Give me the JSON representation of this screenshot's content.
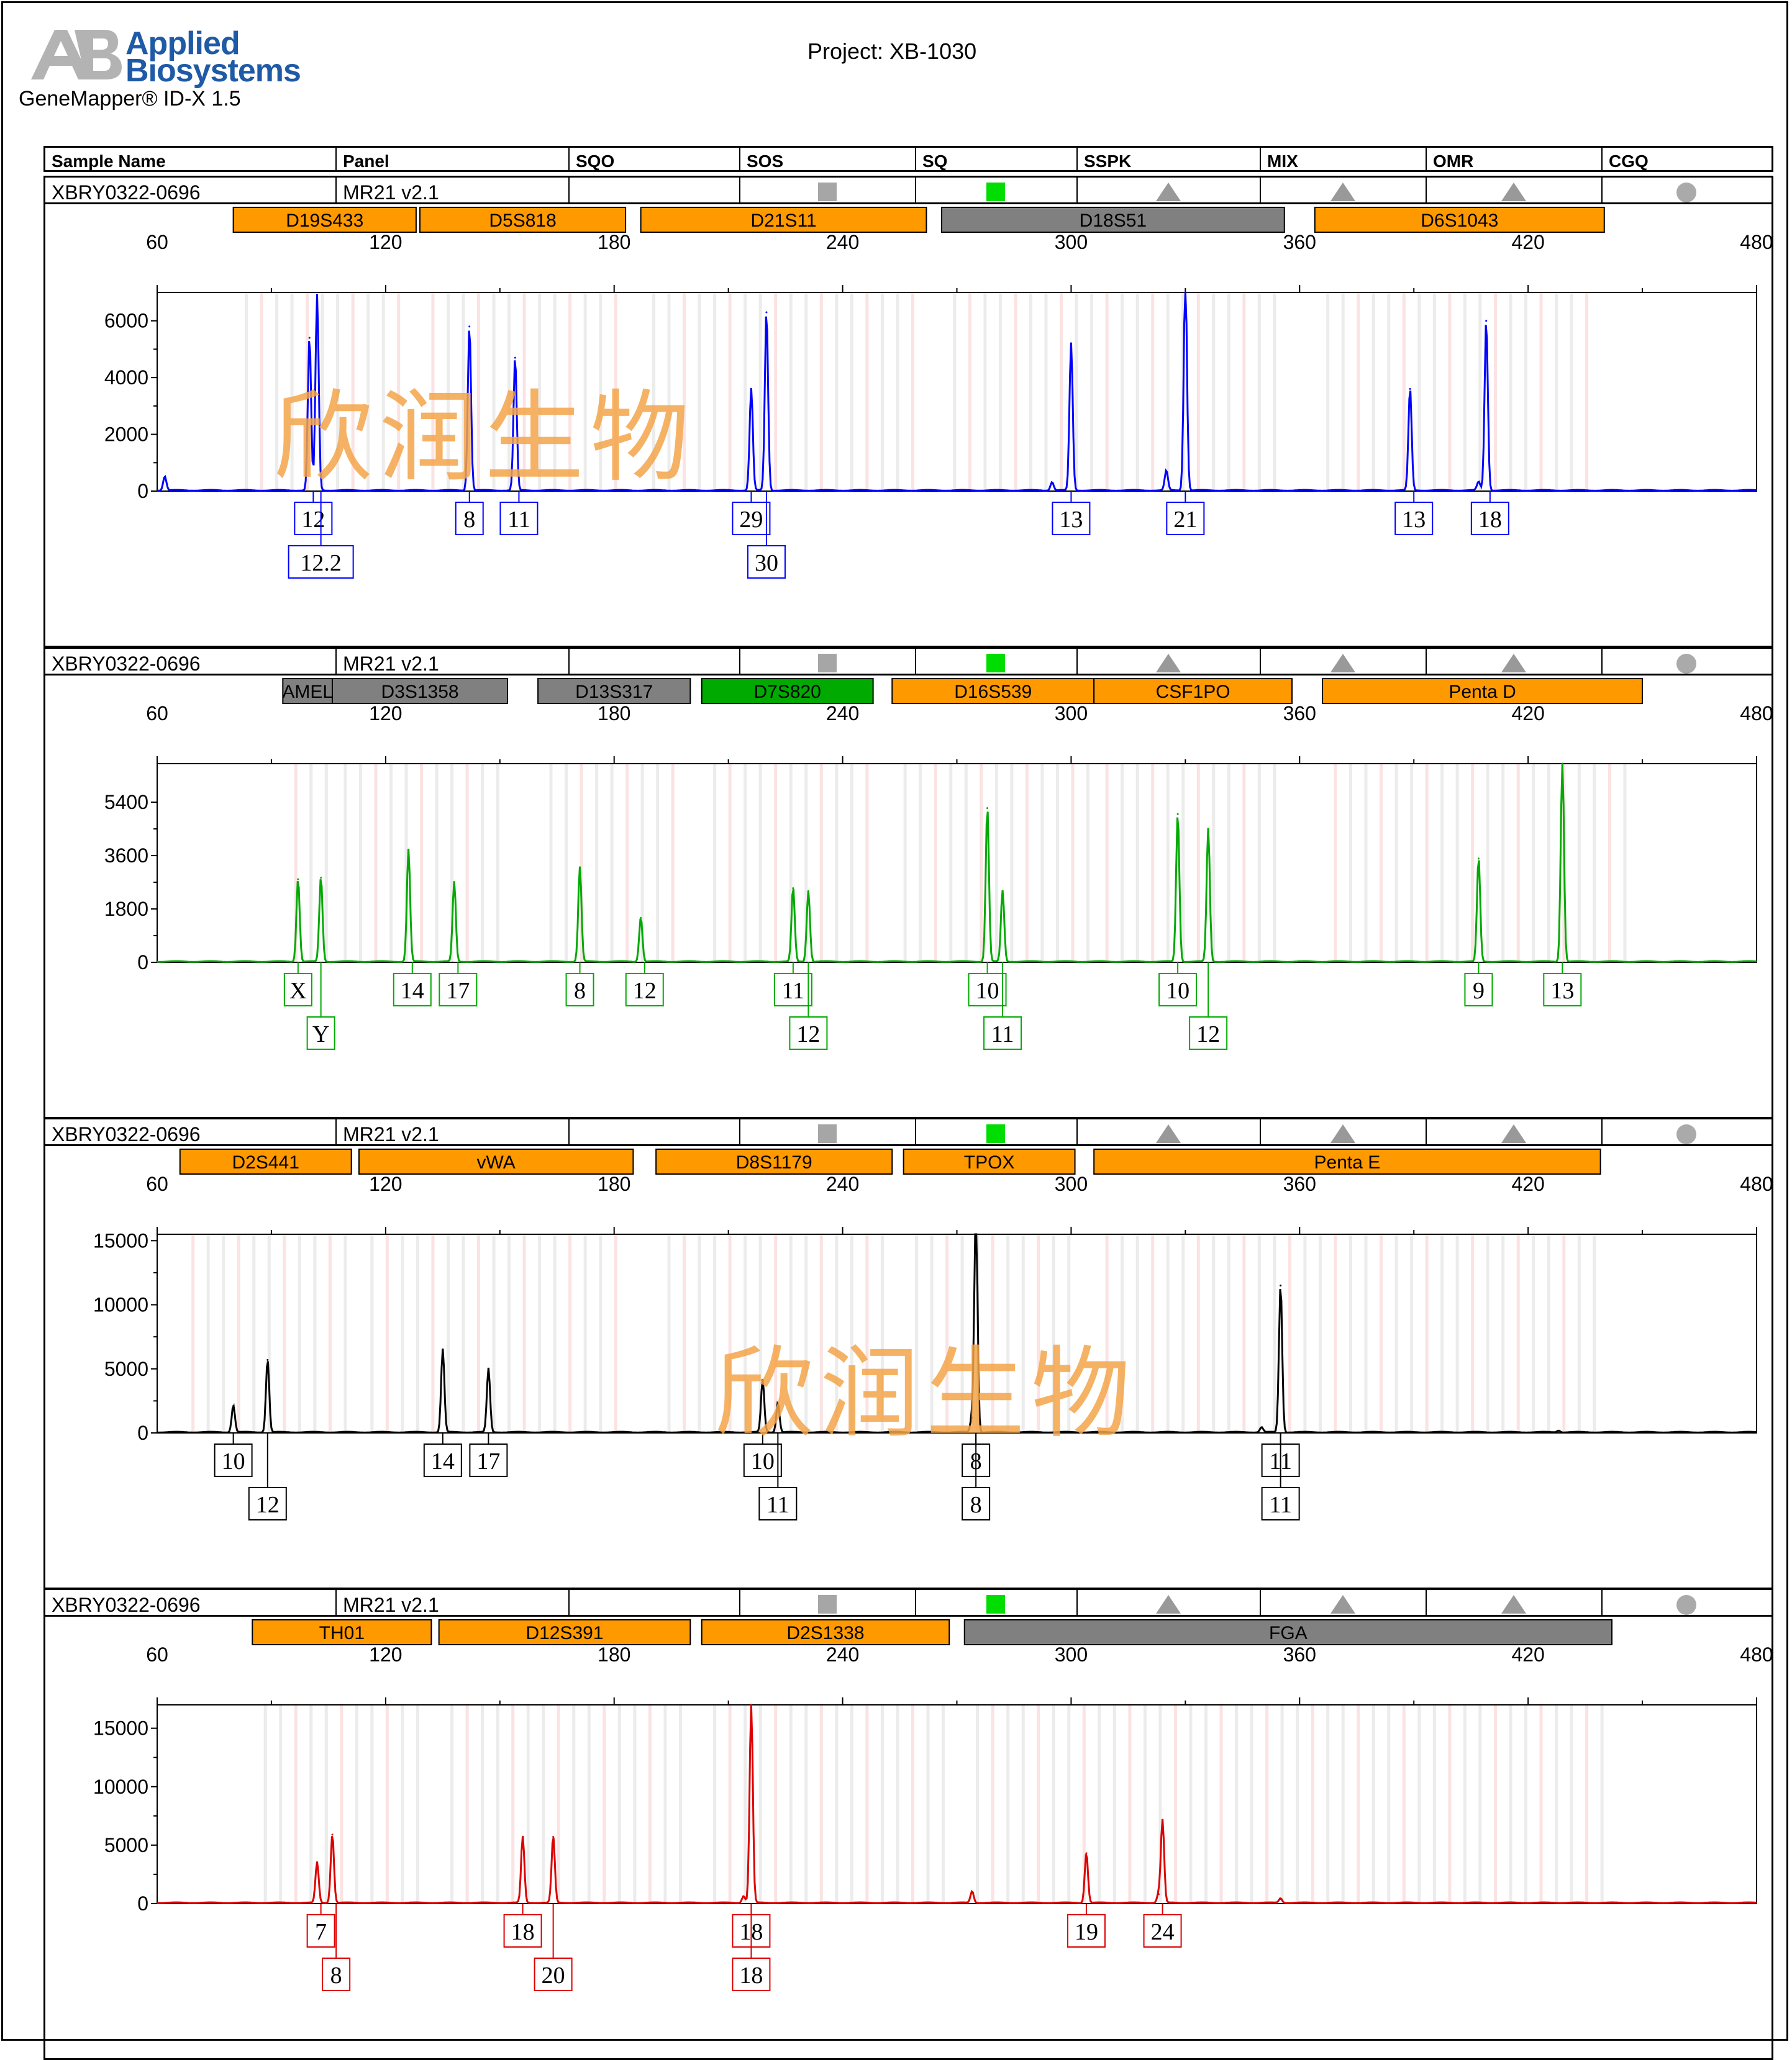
{
  "header": {
    "logo_line1": "Applied",
    "logo_line2": "Biosystems",
    "software": "GeneMapper® ID-X  1.5",
    "project": "Project: XB-1030"
  },
  "columns": [
    "Sample Name",
    "Panel",
    "SQO",
    "SOS",
    "SQ",
    "SSPK",
    "MIX",
    "OMR",
    "CGQ"
  ],
  "watermark": "欣润生物",
  "sample": {
    "name": "XBRY0322-0696",
    "panel": "MR21  v2.1",
    "indicators": [
      {
        "column": "SOS",
        "shape": "square",
        "color": "#a6a6a6"
      },
      {
        "column": "SQ",
        "shape": "square",
        "color": "#00dd00"
      },
      {
        "column": "SSPK",
        "shape": "triangle",
        "color": "#999999"
      },
      {
        "column": "MIX",
        "shape": "triangle",
        "color": "#999999"
      },
      {
        "column": "OMR",
        "shape": "triangle",
        "color": "#999999"
      },
      {
        "column": "CGQ",
        "shape": "circle",
        "color": "#aaaaaa"
      }
    ]
  },
  "chart_data": [
    {
      "type": "line",
      "title": "",
      "color": "#0000ff",
      "xlim": [
        60,
        480
      ],
      "xticks": [
        60,
        120,
        180,
        240,
        300,
        360,
        420,
        480
      ],
      "ylim": [
        0,
        7000
      ],
      "yticks": [
        0,
        2000,
        4000,
        6000
      ],
      "markers": [
        {
          "name": "D19S433",
          "start": 80,
          "end": 128,
          "color": "#ff9900"
        },
        {
          "name": "D5S818",
          "start": 129,
          "end": 183,
          "color": "#ff9900"
        },
        {
          "name": "D21S11",
          "start": 187,
          "end": 262,
          "color": "#ff9900"
        },
        {
          "name": "D18S51",
          "start": 266,
          "end": 356,
          "color": "#808080"
        },
        {
          "name": "D6S1043",
          "start": 364,
          "end": 440,
          "color": "#ff9900"
        }
      ],
      "peaks": [
        {
          "x": 62,
          "y": 500
        },
        {
          "x": 100,
          "y": 5400
        },
        {
          "x": 102,
          "y": 6900
        },
        {
          "x": 142,
          "y": 5800
        },
        {
          "x": 154,
          "y": 4700
        },
        {
          "x": 216,
          "y": 3600
        },
        {
          "x": 220,
          "y": 6300
        },
        {
          "x": 295,
          "y": 300
        },
        {
          "x": 300,
          "y": 5200
        },
        {
          "x": 325,
          "y": 700
        },
        {
          "x": 330,
          "y": 7600
        },
        {
          "x": 389,
          "y": 3600
        },
        {
          "x": 407,
          "y": 300
        },
        {
          "x": 409,
          "y": 6000
        }
      ],
      "allele_labels": [
        {
          "x": 101,
          "row": 0,
          "text": "12"
        },
        {
          "x": 103,
          "row": 1,
          "text": "12.2"
        },
        {
          "x": 142,
          "row": 0,
          "text": "8"
        },
        {
          "x": 155,
          "row": 0,
          "text": "11"
        },
        {
          "x": 216,
          "row": 0,
          "text": "29"
        },
        {
          "x": 220,
          "row": 1,
          "text": "30"
        },
        {
          "x": 300,
          "row": 0,
          "text": "13"
        },
        {
          "x": 330,
          "row": 0,
          "text": "21"
        },
        {
          "x": 390,
          "row": 0,
          "text": "13"
        },
        {
          "x": 410,
          "row": 0,
          "text": "18"
        }
      ]
    },
    {
      "type": "line",
      "title": "",
      "color": "#00aa00",
      "xlim": [
        60,
        480
      ],
      "xticks": [
        60,
        120,
        180,
        240,
        300,
        360,
        420,
        480
      ],
      "ylim": [
        0,
        6700
      ],
      "yticks": [
        0,
        1800,
        3600,
        5400
      ],
      "markers": [
        {
          "name": "AMEL",
          "start": 93,
          "end": 106,
          "color": "#808080"
        },
        {
          "name": "D3S1358",
          "start": 106,
          "end": 152,
          "color": "#808080"
        },
        {
          "name": "D13S317",
          "start": 160,
          "end": 200,
          "color": "#808080"
        },
        {
          "name": "D7S820",
          "start": 203,
          "end": 248,
          "color": "#00aa00"
        },
        {
          "name": "D16S539",
          "start": 253,
          "end": 306,
          "color": "#ff9900"
        },
        {
          "name": "CSF1PO",
          "start": 306,
          "end": 358,
          "color": "#ff9900"
        },
        {
          "name": "Penta D",
          "start": 366,
          "end": 450,
          "color": "#ff9900"
        }
      ],
      "peaks": [
        {
          "x": 97,
          "y": 2800
        },
        {
          "x": 103,
          "y": 2850
        },
        {
          "x": 126,
          "y": 3800
        },
        {
          "x": 138,
          "y": 2700
        },
        {
          "x": 171,
          "y": 3200
        },
        {
          "x": 187,
          "y": 1500
        },
        {
          "x": 227,
          "y": 2500
        },
        {
          "x": 231,
          "y": 2400
        },
        {
          "x": 278,
          "y": 5200
        },
        {
          "x": 282,
          "y": 2400
        },
        {
          "x": 328,
          "y": 5000
        },
        {
          "x": 336,
          "y": 4500
        },
        {
          "x": 407,
          "y": 3500
        },
        {
          "x": 429,
          "y": 6800
        }
      ],
      "allele_labels": [
        {
          "x": 97,
          "row": 0,
          "text": "X"
        },
        {
          "x": 103,
          "row": 1,
          "text": "Y"
        },
        {
          "x": 127,
          "row": 0,
          "text": "14"
        },
        {
          "x": 139,
          "row": 0,
          "text": "17"
        },
        {
          "x": 171,
          "row": 0,
          "text": "8"
        },
        {
          "x": 188,
          "row": 0,
          "text": "12"
        },
        {
          "x": 227,
          "row": 0,
          "text": "11"
        },
        {
          "x": 231,
          "row": 1,
          "text": "12"
        },
        {
          "x": 278,
          "row": 0,
          "text": "10"
        },
        {
          "x": 282,
          "row": 1,
          "text": "11"
        },
        {
          "x": 328,
          "row": 0,
          "text": "10"
        },
        {
          "x": 336,
          "row": 1,
          "text": "12"
        },
        {
          "x": 407,
          "row": 0,
          "text": "9"
        },
        {
          "x": 429,
          "row": 0,
          "text": "13"
        }
      ]
    },
    {
      "type": "line",
      "title": "",
      "color": "#000000",
      "xlim": [
        60,
        480
      ],
      "xticks": [
        60,
        120,
        180,
        240,
        300,
        360,
        420,
        480
      ],
      "ylim": [
        0,
        15500
      ],
      "yticks": [
        0,
        5000,
        10000,
        15000
      ],
      "markers": [
        {
          "name": "D2S441",
          "start": 66,
          "end": 111,
          "color": "#ff9900"
        },
        {
          "name": "vWA",
          "start": 113,
          "end": 185,
          "color": "#ff9900"
        },
        {
          "name": "D8S1179",
          "start": 191,
          "end": 253,
          "color": "#ff9900"
        },
        {
          "name": "TPOX",
          "start": 256,
          "end": 301,
          "color": "#ff9900"
        },
        {
          "name": "Penta E",
          "start": 306,
          "end": 439,
          "color": "#ff9900"
        }
      ],
      "peaks": [
        {
          "x": 80,
          "y": 2100
        },
        {
          "x": 89,
          "y": 5700
        },
        {
          "x": 135,
          "y": 6500
        },
        {
          "x": 147,
          "y": 5000
        },
        {
          "x": 219,
          "y": 4100
        },
        {
          "x": 223,
          "y": 2300
        },
        {
          "x": 274,
          "y": 1200
        },
        {
          "x": 275,
          "y": 18000
        },
        {
          "x": 350,
          "y": 400
        },
        {
          "x": 355,
          "y": 11500
        },
        {
          "x": 428,
          "y": 150
        }
      ],
      "allele_labels": [
        {
          "x": 80,
          "row": 0,
          "text": "10"
        },
        {
          "x": 89,
          "row": 1,
          "text": "12"
        },
        {
          "x": 135,
          "row": 0,
          "text": "14"
        },
        {
          "x": 147,
          "row": 0,
          "text": "17"
        },
        {
          "x": 219,
          "row": 0,
          "text": "10"
        },
        {
          "x": 223,
          "row": 1,
          "text": "11"
        },
        {
          "x": 275,
          "row": 0,
          "text": "8"
        },
        {
          "x": 275,
          "row": 1,
          "text": "8"
        },
        {
          "x": 355,
          "row": 0,
          "text": "11"
        },
        {
          "x": 355,
          "row": 1,
          "text": "11"
        }
      ]
    },
    {
      "type": "line",
      "title": "",
      "color": "#dd0000",
      "xlim": [
        60,
        480
      ],
      "xticks": [
        60,
        120,
        180,
        240,
        300,
        360,
        420,
        480
      ],
      "ylim": [
        0,
        17000
      ],
      "yticks": [
        0,
        5000,
        10000,
        15000
      ],
      "markers": [
        {
          "name": "TH01",
          "start": 85,
          "end": 132,
          "color": "#ff9900"
        },
        {
          "name": "D12S391",
          "start": 134,
          "end": 200,
          "color": "#ff9900"
        },
        {
          "name": "D2S1338",
          "start": 203,
          "end": 268,
          "color": "#ff9900"
        },
        {
          "name": "FGA",
          "start": 272,
          "end": 442,
          "color": "#808080"
        }
      ],
      "peaks": [
        {
          "x": 102,
          "y": 3500
        },
        {
          "x": 106,
          "y": 5900
        },
        {
          "x": 156,
          "y": 5700
        },
        {
          "x": 164,
          "y": 5700
        },
        {
          "x": 214,
          "y": 600
        },
        {
          "x": 216,
          "y": 17000
        },
        {
          "x": 274,
          "y": 1000
        },
        {
          "x": 304,
          "y": 4300
        },
        {
          "x": 323,
          "y": 800
        },
        {
          "x": 324,
          "y": 7100
        },
        {
          "x": 355,
          "y": 400
        }
      ],
      "allele_labels": [
        {
          "x": 103,
          "row": 0,
          "text": "7"
        },
        {
          "x": 107,
          "row": 1,
          "text": "8"
        },
        {
          "x": 156,
          "row": 0,
          "text": "18"
        },
        {
          "x": 164,
          "row": 1,
          "text": "20"
        },
        {
          "x": 216,
          "row": 0,
          "text": "18"
        },
        {
          "x": 216,
          "row": 1,
          "text": "18"
        },
        {
          "x": 304,
          "row": 0,
          "text": "19"
        },
        {
          "x": 324,
          "row": 0,
          "text": "24"
        }
      ]
    }
  ]
}
